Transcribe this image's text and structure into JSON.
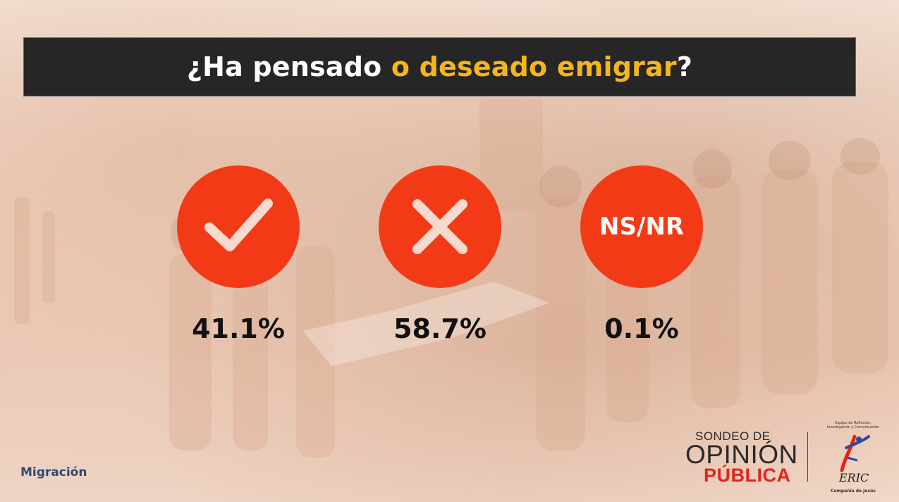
{
  "title": {
    "part1": "¿Ha pensado ",
    "highlight": "o deseado emigrar",
    "part2": "?"
  },
  "options": [
    {
      "icon": "check-icon",
      "value": "41.1%"
    },
    {
      "icon": "x-icon",
      "value": "58.7%"
    },
    {
      "icon": "ns-nr-label",
      "label": "NS/NR",
      "value": "0.1%"
    }
  ],
  "footer": {
    "section": "Migración"
  },
  "logos": {
    "sondeo": {
      "line1": "SONDEO DE",
      "line2": "OPINIÓN",
      "line3": "PÚBLICA"
    },
    "eric": {
      "line1": "Equipo de Reflexión,",
      "line2": "Investigación y Comunicación",
      "mark": "ERIC",
      "org": "Compañía de Jesús"
    }
  },
  "colors": {
    "accent": "#f33a16",
    "highlight": "#f5b51c",
    "title_bar": "#262626",
    "footer_text": "#2f4a78"
  }
}
